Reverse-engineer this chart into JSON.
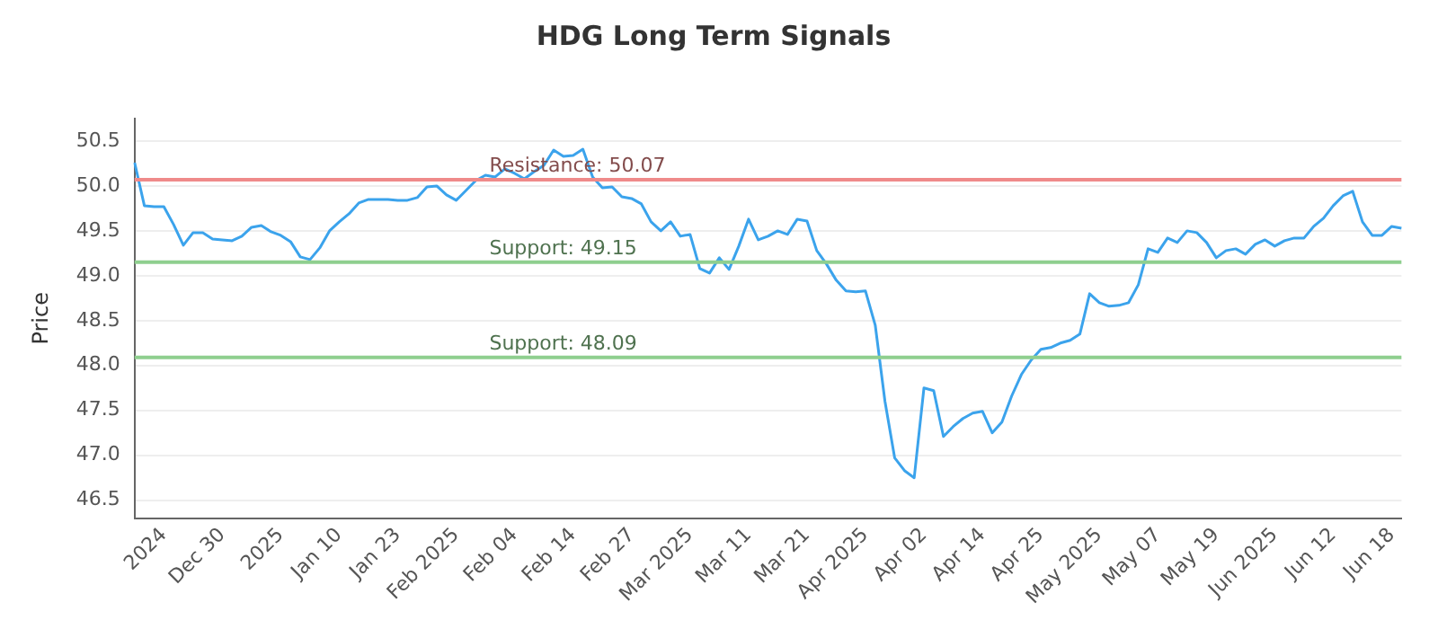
{
  "chart_data": {
    "type": "line",
    "title": "HDG Long Term Signals",
    "ylabel": "Price",
    "categories": [
      null,
      null,
      null,
      "2024",
      null,
      null,
      null,
      null,
      null,
      "Dec 30",
      null,
      null,
      null,
      null,
      null,
      "2025",
      null,
      null,
      null,
      null,
      null,
      "Jan 10",
      null,
      null,
      null,
      null,
      null,
      "Jan 23",
      null,
      null,
      null,
      null,
      null,
      "Feb 2025",
      null,
      null,
      null,
      null,
      null,
      "Feb 04",
      null,
      null,
      null,
      null,
      null,
      "Feb 14",
      null,
      null,
      null,
      null,
      null,
      "Feb 27",
      null,
      null,
      null,
      null,
      null,
      "Mar 2025",
      null,
      null,
      null,
      null,
      null,
      "Mar 11",
      null,
      null,
      null,
      null,
      null,
      "Mar 21",
      null,
      null,
      null,
      null,
      null,
      "Apr 2025",
      null,
      null,
      null,
      null,
      null,
      "Apr 02",
      null,
      null,
      null,
      null,
      null,
      "Apr 14",
      null,
      null,
      null,
      null,
      null,
      "Apr 25",
      null,
      null,
      null,
      null,
      null,
      "May 2025",
      null,
      null,
      null,
      null,
      null,
      "May 07",
      null,
      null,
      null,
      null,
      null,
      "May 19",
      null,
      null,
      null,
      null,
      null,
      "Jun 2025",
      null,
      null,
      null,
      null,
      null,
      "Jun 12",
      null,
      null,
      null,
      null,
      null,
      "Jun 18",
      null
    ],
    "series": [
      {
        "color": "#3ba3ec",
        "values": [
          50.26,
          49.78,
          49.77,
          49.77,
          49.57,
          49.34,
          49.48,
          49.48,
          49.41,
          49.4,
          49.39,
          49.44,
          49.54,
          49.56,
          49.49,
          49.45,
          49.38,
          49.21,
          49.18,
          49.31,
          49.5,
          49.6,
          49.69,
          49.81,
          49.85,
          49.85,
          49.85,
          49.84,
          49.84,
          49.87,
          49.99,
          50.0,
          49.9,
          49.84,
          49.95,
          50.06,
          50.12,
          50.1,
          50.19,
          50.14,
          50.08,
          50.16,
          50.23,
          50.4,
          50.33,
          50.34,
          50.41,
          50.1,
          49.98,
          49.99,
          49.88,
          49.86,
          49.8,
          49.6,
          49.5,
          49.6,
          49.44,
          49.46,
          49.08,
          49.03,
          49.2,
          49.07,
          49.33,
          49.63,
          49.4,
          49.44,
          49.5,
          49.46,
          49.63,
          49.61,
          49.28,
          49.13,
          48.95,
          48.83,
          48.82,
          48.83,
          48.45,
          47.6,
          46.97,
          46.83,
          46.75,
          47.75,
          47.72,
          47.21,
          47.32,
          47.41,
          47.47,
          47.49,
          47.25,
          47.37,
          47.66,
          47.9,
          48.06,
          48.18,
          48.2,
          48.25,
          48.28,
          48.35,
          48.8,
          48.7,
          48.66,
          48.67,
          48.7,
          48.9,
          49.3,
          49.26,
          49.42,
          49.37,
          49.5,
          49.48,
          49.37,
          49.2,
          49.28,
          49.3,
          49.24,
          49.35,
          49.4,
          49.33,
          49.39,
          49.42,
          49.42,
          49.55,
          49.64,
          49.78,
          49.89,
          49.94,
          49.6,
          49.45,
          49.45,
          49.55,
          49.53
        ]
      }
    ],
    "ylim": [
      46.3,
      50.75
    ],
    "yticks": [
      46.5,
      {
        "value": 47,
        "label": "47.0"
      },
      47.5,
      {
        "value": 48,
        "label": "48.0"
      },
      48.5,
      {
        "value": 49,
        "label": "49.0"
      },
      49.5,
      {
        "value": 50,
        "label": "50.0"
      },
      50.5
    ],
    "ref_lines": [
      {
        "axis": "y",
        "value": 50.07,
        "label": "Resistance: 50.07",
        "color": "#ef8a8a"
      },
      {
        "axis": "y",
        "value": 49.15,
        "label": "Support: 49.15",
        "color": "#8fcf8f"
      },
      {
        "axis": "y",
        "value": 48.09,
        "label": "Support: 48.09",
        "color": "#8fcf8f"
      }
    ],
    "grid": "y",
    "legend": false,
    "marker": "none",
    "line_style": "solid"
  }
}
